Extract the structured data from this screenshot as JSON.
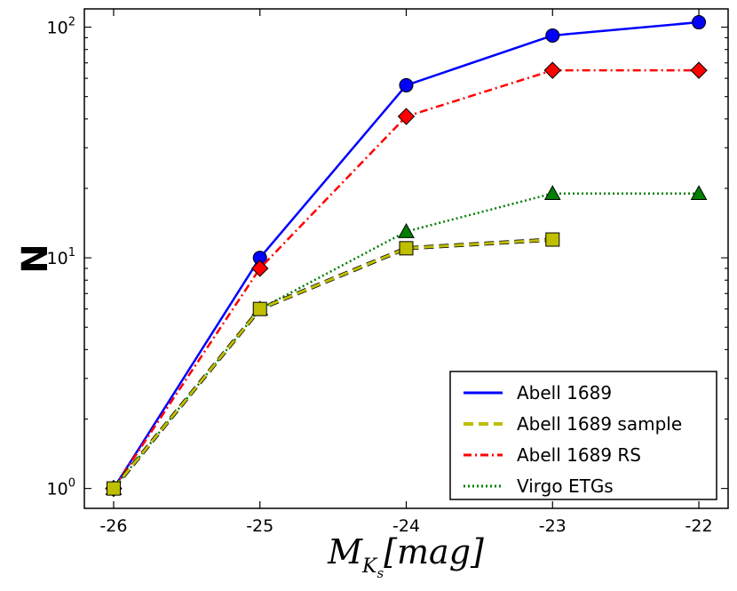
{
  "chart_data": {
    "type": "line",
    "title": "",
    "xlabel": {
      "main": "M",
      "sub": "K",
      "subsub": "s",
      "unit": "[mag]"
    },
    "ylabel": "N",
    "yscale": "log",
    "xlim": [
      -26.2,
      -21.8
    ],
    "ylim": [
      0.82,
      120
    ],
    "x": [
      -26,
      -25,
      -24,
      -23,
      -22
    ],
    "xtick_labels": [
      "-26",
      "-25",
      "-24",
      "-23",
      "-22"
    ],
    "ytick_labels": [
      {
        "base": "10",
        "exp": "0"
      },
      {
        "base": "10",
        "exp": "1"
      },
      {
        "base": "10",
        "exp": "2"
      }
    ],
    "legend_position": "lower-right",
    "series": [
      {
        "name": "Abell 1689",
        "color": "#0000ff",
        "dash": "solid",
        "marker": "circle",
        "x": [
          -26,
          -25,
          -24,
          -23,
          -22
        ],
        "values": [
          1,
          10,
          56,
          92,
          105
        ]
      },
      {
        "name": "Abell 1689 RS",
        "color": "#ff0000",
        "dash": "dashdot",
        "marker": "diamond",
        "x": [
          -26,
          -25,
          -24,
          -23,
          -22
        ],
        "values": [
          1,
          9,
          41,
          65,
          65
        ]
      },
      {
        "name": "Virgo ETGs",
        "color": "#007f00",
        "dash": "dotted",
        "marker": "triangle",
        "x": [
          -26,
          -25,
          -24,
          -23,
          -22
        ],
        "values": [
          1,
          6,
          13,
          19,
          19
        ]
      },
      {
        "name": "Abell 1689 sample",
        "color": "#bfbf00",
        "dash": "dashed",
        "marker": "square",
        "x": [
          -26,
          -25,
          -24,
          -23
        ],
        "values": [
          1,
          6,
          11,
          12
        ]
      }
    ],
    "legend_order": [
      "Abell 1689",
      "Abell 1689 sample",
      "Abell 1689 RS",
      "Virgo ETGs"
    ]
  }
}
